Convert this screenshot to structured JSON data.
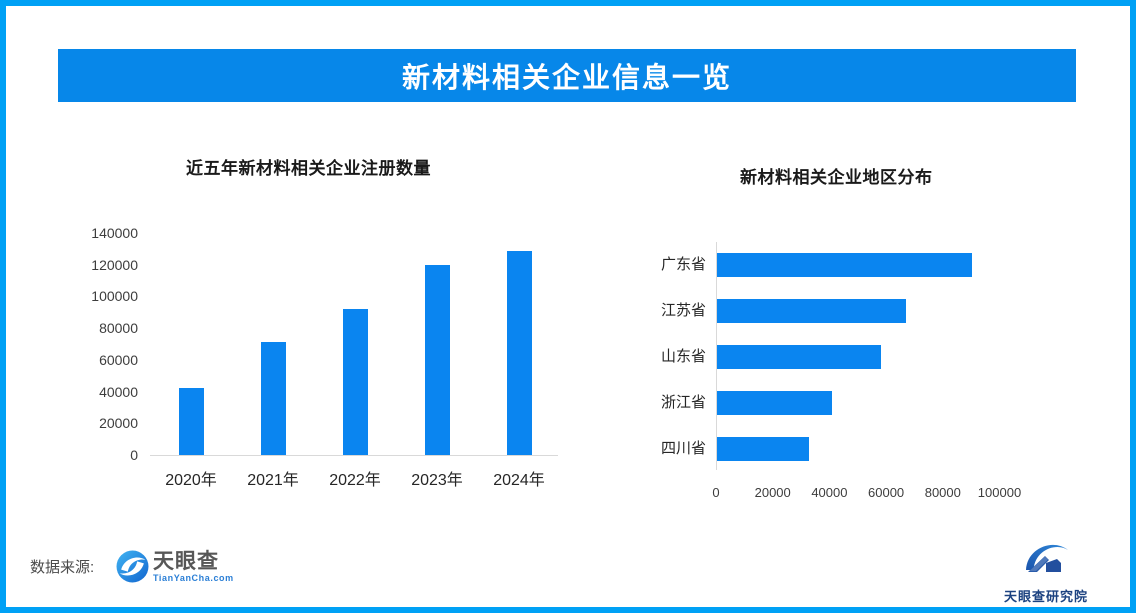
{
  "banner": {
    "title": "新材料相关企业信息一览"
  },
  "colors": {
    "border": "#00a1f5",
    "banner_bg": "#0787e9",
    "bar_blue": "#0a85f0",
    "axis_gray": "#d9d9d9"
  },
  "footer": {
    "source_label": "数据来源:",
    "tianyancha_logo": {
      "name": "天眼查",
      "domain": "TianYanCha.com"
    },
    "institute_logo": {
      "name": "天眼查研究院"
    }
  },
  "chart_data": [
    {
      "type": "bar",
      "orientation": "vertical",
      "title": "近五年新材料相关企业注册数量",
      "categories": [
        "2020年",
        "2021年",
        "2022年",
        "2023年",
        "2024年"
      ],
      "values": [
        42500,
        71000,
        92000,
        120000,
        128500
      ],
      "ylabel": "",
      "xlabel": "",
      "ylim": [
        0,
        140000
      ],
      "yticks": [
        0,
        20000,
        40000,
        60000,
        80000,
        100000,
        120000,
        140000
      ],
      "grid": false,
      "legend": "none",
      "bar_color": "#0a85f0"
    },
    {
      "type": "bar",
      "orientation": "horizontal",
      "title": "新材料相关企业地区分布",
      "categories": [
        "广东省",
        "江苏省",
        "山东省",
        "浙江省",
        "四川省"
      ],
      "values": [
        90000,
        66500,
        58000,
        40500,
        32500
      ],
      "ylabel": "",
      "xlabel": "",
      "xlim": [
        0,
        100000
      ],
      "xticks": [
        0,
        20000,
        40000,
        60000,
        80000,
        100000
      ],
      "grid": false,
      "legend": "none",
      "bar_color": "#0a85f0"
    }
  ]
}
